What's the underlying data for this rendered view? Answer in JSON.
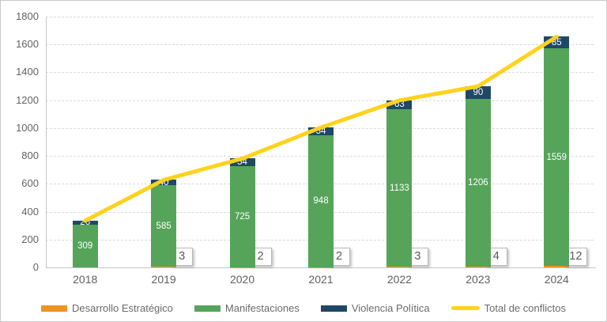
{
  "chart_data": {
    "type": "bar",
    "stacked": true,
    "orientation": "vertical",
    "categories": [
      "2018",
      "2019",
      "2020",
      "2021",
      "2022",
      "2023",
      "2024"
    ],
    "series": [
      {
        "name": "Desarrollo Estratégico",
        "color": "#ee9422",
        "values": [
          0,
          3,
          2,
          2,
          3,
          4,
          12
        ],
        "label_style": "callout-box",
        "labels": [
          "",
          "3",
          "2",
          "2",
          "3",
          "4",
          "12"
        ]
      },
      {
        "name": "Manifestaciones",
        "color": "#55a45a",
        "values": [
          309,
          585,
          725,
          948,
          1133,
          1206,
          1559
        ],
        "label_style": "inside-white",
        "labels": [
          "309",
          "585",
          "725",
          "948",
          "1133",
          "1206",
          "1559"
        ]
      },
      {
        "name": "Violencia Política",
        "color": "#1f4766",
        "values": [
          26,
          40,
          54,
          54,
          63,
          90,
          85
        ],
        "label_style": "inside-white",
        "labels": [
          "26",
          "40",
          "54",
          "54",
          "63",
          "90",
          "85"
        ]
      }
    ],
    "line_series": {
      "name": "Total de conflictos",
      "color": "#ffd21c",
      "values": [
        335,
        628,
        781,
        1004,
        1199,
        1300,
        1656
      ]
    },
    "title": "",
    "xlabel": "",
    "ylabel": "",
    "ylim": [
      0,
      1800
    ],
    "ytick_step": 200,
    "ytick_labels": [
      "0",
      "200",
      "400",
      "600",
      "800",
      "1000",
      "1200",
      "1400",
      "1600",
      "1800"
    ],
    "grid": "horizontal-dashed",
    "legend_position": "bottom"
  }
}
